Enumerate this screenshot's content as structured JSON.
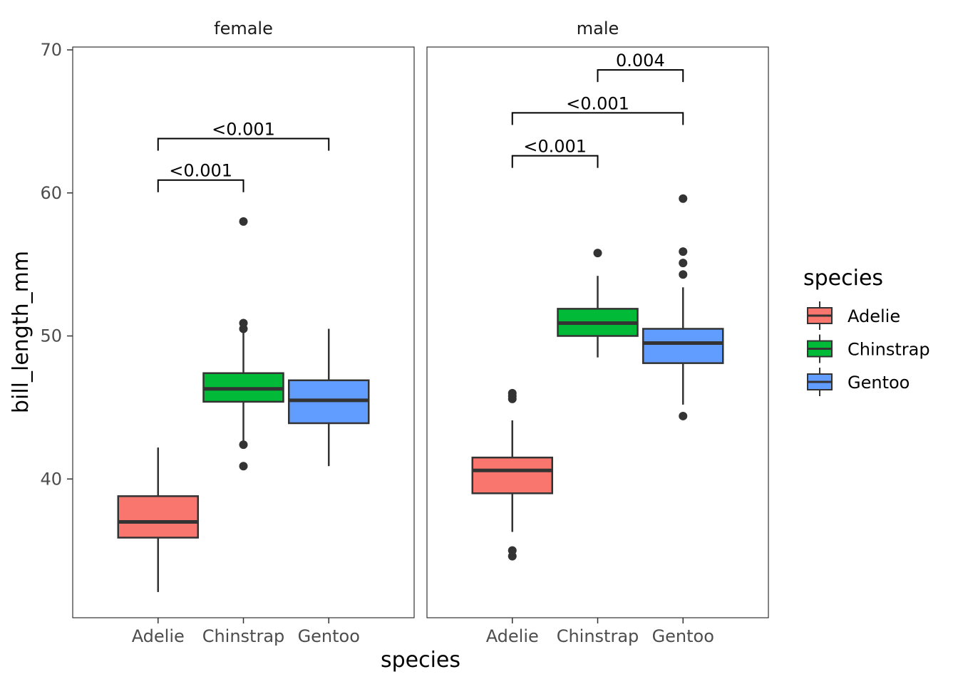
{
  "chart_data": {
    "type": "boxplot",
    "facets": [
      "female",
      "male"
    ],
    "categories": [
      "Adelie",
      "Chinstrap",
      "Gentoo"
    ],
    "xlabel": "species",
    "ylabel": "bill_length_mm",
    "ylim": [
      30.3,
      70.2
    ],
    "yticks": [
      40,
      50,
      60,
      70
    ],
    "legend": {
      "title": "species",
      "position": "right",
      "entries": [
        {
          "label": "Adelie",
          "color": "#F8766D"
        },
        {
          "label": "Chinstrap",
          "color": "#00BA38"
        },
        {
          "label": "Gentoo",
          "color": "#619CFF"
        }
      ]
    },
    "grid": false,
    "panels": [
      {
        "facet": "female",
        "boxes": [
          {
            "species": "Adelie",
            "lower_whisker": 32.1,
            "q1": 35.9,
            "median": 37.0,
            "q3": 38.8,
            "upper_whisker": 42.2,
            "outliers": []
          },
          {
            "species": "Chinstrap",
            "lower_whisker": 42.5,
            "q1": 45.4,
            "median": 46.3,
            "q3": 47.4,
            "upper_whisker": 50.5,
            "outliers": [
              40.9,
              42.4,
              50.5,
              50.9,
              58.0
            ]
          },
          {
            "species": "Gentoo",
            "lower_whisker": 40.9,
            "q1": 43.9,
            "median": 45.5,
            "q3": 46.9,
            "upper_whisker": 50.5,
            "outliers": []
          }
        ],
        "comparisons": [
          {
            "from": "Adelie",
            "to": "Chinstrap",
            "y": 60.9,
            "label": "<0.001"
          },
          {
            "from": "Adelie",
            "to": "Gentoo",
            "y": 63.8,
            "label": "<0.001"
          }
        ]
      },
      {
        "facet": "male",
        "boxes": [
          {
            "species": "Adelie",
            "lower_whisker": 36.3,
            "q1": 39.0,
            "median": 40.6,
            "q3": 41.5,
            "upper_whisker": 44.1,
            "outliers": [
              34.6,
              35.0,
              45.6,
              45.8,
              46.0
            ]
          },
          {
            "species": "Chinstrap",
            "lower_whisker": 48.5,
            "q1": 50.0,
            "median": 50.9,
            "q3": 51.9,
            "upper_whisker": 54.2,
            "outliers": [
              55.8
            ]
          },
          {
            "species": "Gentoo",
            "lower_whisker": 45.2,
            "q1": 48.1,
            "median": 49.5,
            "q3": 50.5,
            "upper_whisker": 53.4,
            "outliers": [
              44.4,
              54.3,
              55.1,
              55.9,
              59.6
            ]
          }
        ],
        "comparisons": [
          {
            "from": "Adelie",
            "to": "Chinstrap",
            "y": 62.6,
            "label": "<0.001"
          },
          {
            "from": "Adelie",
            "to": "Gentoo",
            "y": 65.6,
            "label": "<0.001"
          },
          {
            "from": "Chinstrap",
            "to": "Gentoo",
            "y": 68.6,
            "label": "0.004"
          }
        ]
      }
    ]
  }
}
